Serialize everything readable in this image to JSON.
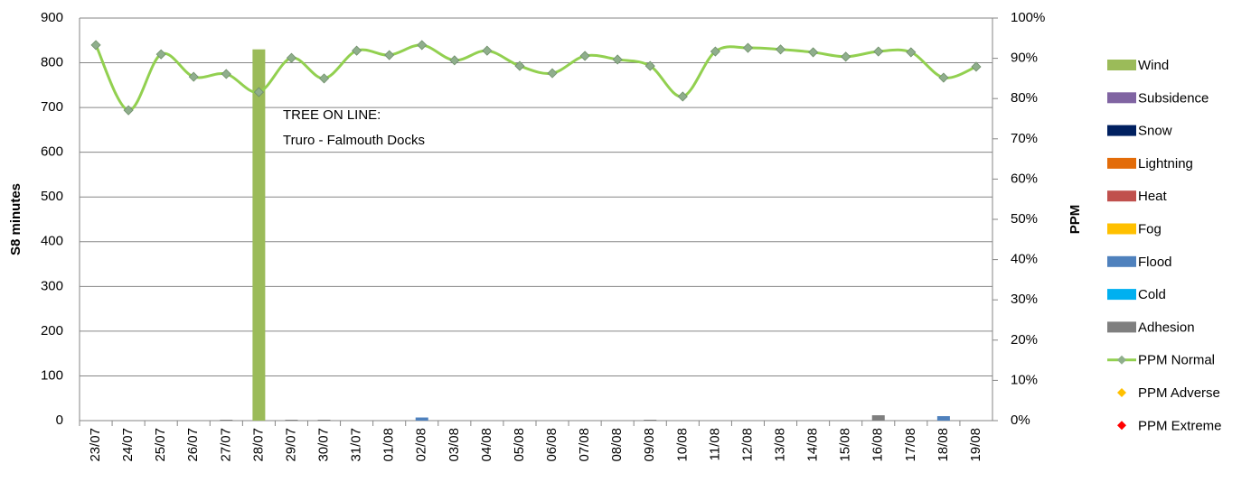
{
  "chart_data": {
    "type": "bar",
    "categories": [
      "23/07",
      "24/07",
      "25/07",
      "26/07",
      "27/07",
      "28/07",
      "29/07",
      "30/07",
      "31/07",
      "01/08",
      "02/08",
      "03/08",
      "04/08",
      "05/08",
      "06/08",
      "07/08",
      "08/08",
      "09/08",
      "10/08",
      "11/08",
      "12/08",
      "13/08",
      "14/08",
      "15/08",
      "16/08",
      "17/08",
      "18/08",
      "19/08"
    ],
    "ylabel": "S8 minutes",
    "y2label": "PPM",
    "ylim": [
      0,
      900
    ],
    "yticks": [
      0,
      100,
      200,
      300,
      400,
      500,
      600,
      700,
      800,
      900
    ],
    "y2lim": [
      0,
      100
    ],
    "y2ticks": [
      {
        "value": 0,
        "label": "0%"
      },
      {
        "value": 10,
        "label": "10%"
      },
      {
        "value": 20,
        "label": "20%"
      },
      {
        "value": 30,
        "label": "30%"
      },
      {
        "value": 40,
        "label": "40%"
      },
      {
        "value": 50,
        "label": "50%"
      },
      {
        "value": 60,
        "label": "60%"
      },
      {
        "value": 70,
        "label": "70%"
      },
      {
        "value": 80,
        "label": "80%"
      },
      {
        "value": 90,
        "label": "90%"
      },
      {
        "value": 100,
        "label": "100%"
      }
    ],
    "grid": true,
    "legend": "right",
    "annotations": [
      "TREE ON LINE:",
      "Truro - Falmouth Docks"
    ],
    "series": [
      {
        "name": "Wind",
        "color": "#9bbb59",
        "values": [
          0,
          0,
          0,
          0,
          0,
          830,
          0,
          0,
          0,
          0,
          0,
          0,
          0,
          0,
          0,
          0,
          0,
          0,
          0,
          0,
          0,
          0,
          0,
          0,
          0,
          0,
          0,
          0
        ]
      },
      {
        "name": "Subsidence",
        "color": "#8064a2",
        "values": [
          0,
          0,
          0,
          0,
          0,
          0,
          0,
          0,
          0,
          0,
          0,
          0,
          0,
          0,
          0,
          0,
          0,
          0,
          0,
          0,
          0,
          0,
          0,
          0,
          0,
          0,
          0,
          0
        ]
      },
      {
        "name": "Snow",
        "color": "#002060",
        "values": [
          0,
          0,
          0,
          0,
          0,
          0,
          0,
          0,
          0,
          0,
          0,
          0,
          0,
          0,
          0,
          0,
          0,
          0,
          0,
          0,
          0,
          0,
          0,
          0,
          0,
          0,
          0,
          0
        ]
      },
      {
        "name": "Lightning",
        "color": "#e36c09",
        "values": [
          0,
          0,
          0,
          0,
          0,
          0,
          0,
          0,
          0,
          0,
          0,
          0,
          0,
          0,
          0,
          0,
          0,
          0,
          0,
          0,
          0,
          0,
          0,
          0,
          0,
          0,
          0,
          0
        ]
      },
      {
        "name": "Heat",
        "color": "#c0504d",
        "values": [
          0,
          0,
          0,
          0,
          0,
          0,
          0,
          0,
          0,
          0,
          0,
          0,
          0,
          0,
          0,
          0,
          0,
          0,
          0,
          0,
          0,
          0,
          0,
          0,
          0,
          0,
          0,
          0
        ]
      },
      {
        "name": "Fog",
        "color": "#ffc000",
        "values": [
          0,
          0,
          0,
          0,
          0,
          0,
          0,
          0,
          0,
          0,
          0,
          0,
          0,
          0,
          0,
          0,
          0,
          0,
          0,
          0,
          0,
          0,
          0,
          0,
          0,
          0,
          0,
          0
        ]
      },
      {
        "name": "Flood",
        "color": "#4f81bd",
        "values": [
          0,
          0,
          0,
          0,
          0,
          0,
          0,
          0,
          0,
          0,
          7,
          0,
          0,
          0,
          0,
          0,
          0,
          0,
          0,
          0,
          0,
          0,
          0,
          0,
          0,
          0,
          10,
          0
        ]
      },
      {
        "name": "Cold",
        "color": "#00b0f0",
        "values": [
          0,
          0,
          0,
          0,
          0,
          0,
          0,
          0,
          0,
          0,
          0,
          0,
          0,
          0,
          0,
          0,
          0,
          0,
          0,
          0,
          0,
          0,
          0,
          0,
          0,
          0,
          0,
          0
        ]
      },
      {
        "name": "Adhesion",
        "color": "#7f7f7f",
        "values": [
          0,
          0,
          0,
          0,
          2,
          0,
          2,
          2,
          0,
          0,
          0,
          0,
          0,
          0,
          0,
          0,
          0,
          2,
          0,
          0,
          0,
          0,
          0,
          0,
          12,
          0,
          0,
          0
        ]
      },
      {
        "name": "PPM Normal",
        "type": "line",
        "axis": "y2",
        "color": "#92d050",
        "marker_color": "#8fae8c",
        "values": [
          93.3,
          77.1,
          91.0,
          85.4,
          86.1,
          81.6,
          90.1,
          85.0,
          91.9,
          90.8,
          93.3,
          89.5,
          91.9,
          88.1,
          86.3,
          90.6,
          89.7,
          88.1,
          80.5,
          91.7,
          92.6,
          92.2,
          91.5,
          90.4,
          91.7,
          91.5,
          85.2,
          87.9
        ]
      },
      {
        "name": "PPM Adverse",
        "type": "scatter",
        "axis": "y2",
        "color": "#ffc000",
        "values": [
          null,
          null,
          null,
          null,
          null,
          null,
          null,
          null,
          null,
          null,
          null,
          null,
          null,
          null,
          null,
          null,
          null,
          null,
          null,
          null,
          null,
          null,
          null,
          null,
          null,
          null,
          null,
          null
        ]
      },
      {
        "name": "PPM Extreme",
        "type": "scatter",
        "axis": "y2",
        "color": "#ff0000",
        "values": [
          null,
          null,
          null,
          null,
          null,
          null,
          null,
          null,
          null,
          null,
          null,
          null,
          null,
          null,
          null,
          null,
          null,
          null,
          null,
          null,
          null,
          null,
          null,
          null,
          null,
          null,
          null,
          null
        ]
      }
    ]
  }
}
